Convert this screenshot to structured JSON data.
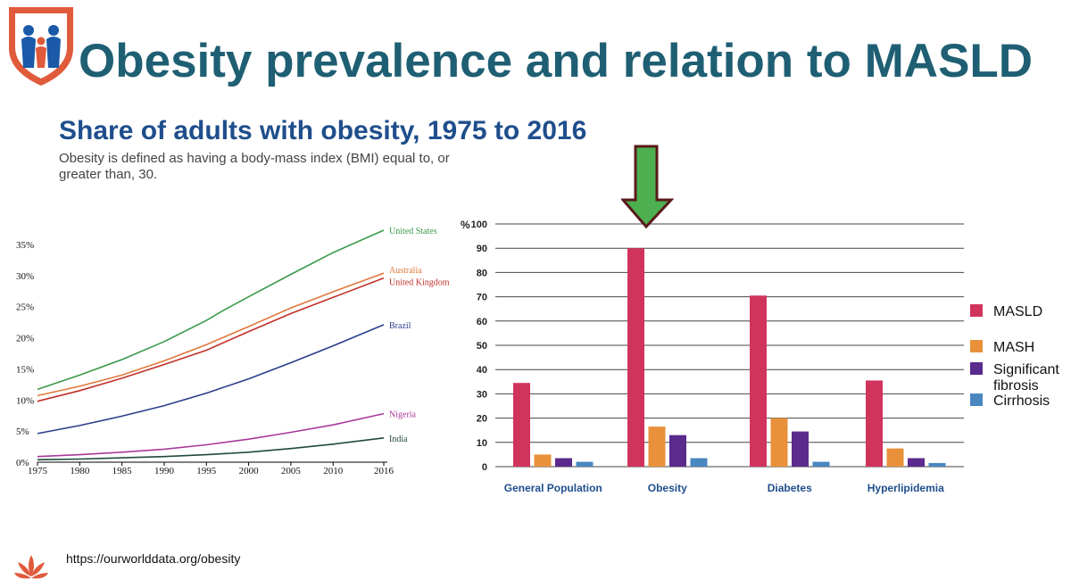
{
  "slide": {
    "title": "Obesity prevalence and relation to MASLD",
    "source_url": "https://ourworlddata.org/obesity"
  },
  "colors": {
    "title": "#1f5f73",
    "chart_title": "#1f4e8c",
    "logo_red": "#e05a3c",
    "logo_blue": "#1a5aa8",
    "arrow_fill": "#4caf50",
    "arrow_stroke": "#5a1a1a"
  },
  "icons": {
    "logo": "shield-family-logo",
    "footer_logo": "lotus-logo",
    "arrow": "down-arrow-icon"
  },
  "chart_data": [
    {
      "type": "line",
      "title": "Share of adults with obesity, 1975 to 2016",
      "subtitle": "Obesity is defined as having a body-mass index (BMI) equal to, or greater than, 30.",
      "x_ticks": [
        1975,
        1980,
        1985,
        1990,
        1995,
        2000,
        2005,
        2010,
        2016
      ],
      "y_ticks": [
        0,
        5,
        10,
        15,
        20,
        25,
        30,
        35
      ],
      "y_tick_labels": [
        "0%",
        "5%",
        "10%",
        "15%",
        "20%",
        "25%",
        "30%",
        "35%"
      ],
      "xlim": [
        1975,
        2016
      ],
      "ylim": [
        0,
        35
      ],
      "series": [
        {
          "name": "United States",
          "color": "#3a9a4a",
          "x": [
            1975,
            1980,
            1985,
            1990,
            1995,
            1997,
            2000,
            2005,
            2010,
            2016
          ],
          "values": [
            11.7,
            14.0,
            16.5,
            19.4,
            22.8,
            24.4,
            26.6,
            30.2,
            33.7,
            37.3
          ]
        },
        {
          "name": "Australia",
          "color": "#e0783c",
          "x": [
            1975,
            1980,
            1985,
            1990,
            1995,
            2000,
            2005,
            2010,
            2016
          ],
          "values": [
            10.7,
            12.2,
            14.0,
            16.3,
            18.9,
            21.8,
            24.8,
            27.4,
            30.4
          ]
        },
        {
          "name": "United Kingdom",
          "color": "#c0302a",
          "x": [
            1975,
            1980,
            1985,
            1990,
            1995,
            2000,
            2005,
            2010,
            2016
          ],
          "values": [
            9.8,
            11.5,
            13.5,
            15.7,
            18.0,
            21.0,
            23.9,
            26.5,
            29.6
          ]
        },
        {
          "name": "Brazil",
          "color": "#2a3d8c",
          "x": [
            1975,
            1980,
            1985,
            1990,
            1995,
            2000,
            2005,
            2010,
            2016
          ],
          "values": [
            4.6,
            5.9,
            7.4,
            9.1,
            11.1,
            13.4,
            16.0,
            18.7,
            22.1
          ]
        },
        {
          "name": "Nigeria",
          "color": "#a83a9a",
          "x": [
            1975,
            1980,
            1985,
            1990,
            1995,
            2000,
            2005,
            2010,
            2016
          ],
          "values": [
            0.9,
            1.2,
            1.6,
            2.1,
            2.8,
            3.7,
            4.8,
            6.0,
            7.8
          ]
        },
        {
          "name": "India",
          "color": "#1f4a3a",
          "x": [
            1975,
            1980,
            1985,
            1990,
            1995,
            2000,
            2005,
            2010,
            2016
          ],
          "values": [
            0.4,
            0.5,
            0.7,
            0.9,
            1.2,
            1.6,
            2.2,
            2.9,
            3.9
          ]
        }
      ]
    },
    {
      "type": "bar",
      "ylabel": "%",
      "ylim": [
        0,
        100
      ],
      "y_ticks": [
        0,
        10,
        20,
        30,
        40,
        50,
        60,
        70,
        80,
        90,
        100
      ],
      "categories": [
        "General Population",
        "Obesity",
        "Diabetes",
        "Hyperlipidemia"
      ],
      "series": [
        {
          "name": "MASLD",
          "color": "#d0345c",
          "values": [
            34.5,
            90,
            70.5,
            35.5
          ]
        },
        {
          "name": "MASH",
          "color": "#e8913a",
          "values": [
            5,
            16.5,
            20,
            7.5
          ]
        },
        {
          "name": "Significant fibrosis",
          "color": "#5a2a8c",
          "values": [
            3.5,
            13,
            14.5,
            3.5
          ]
        },
        {
          "name": "Cirrhosis",
          "color": "#4a86c0",
          "values": [
            2,
            3.5,
            2,
            1.5
          ]
        }
      ],
      "legend": [
        "MASLD",
        "MASH",
        "Significant\nfibrosis",
        "Cirrhosis"
      ]
    }
  ]
}
